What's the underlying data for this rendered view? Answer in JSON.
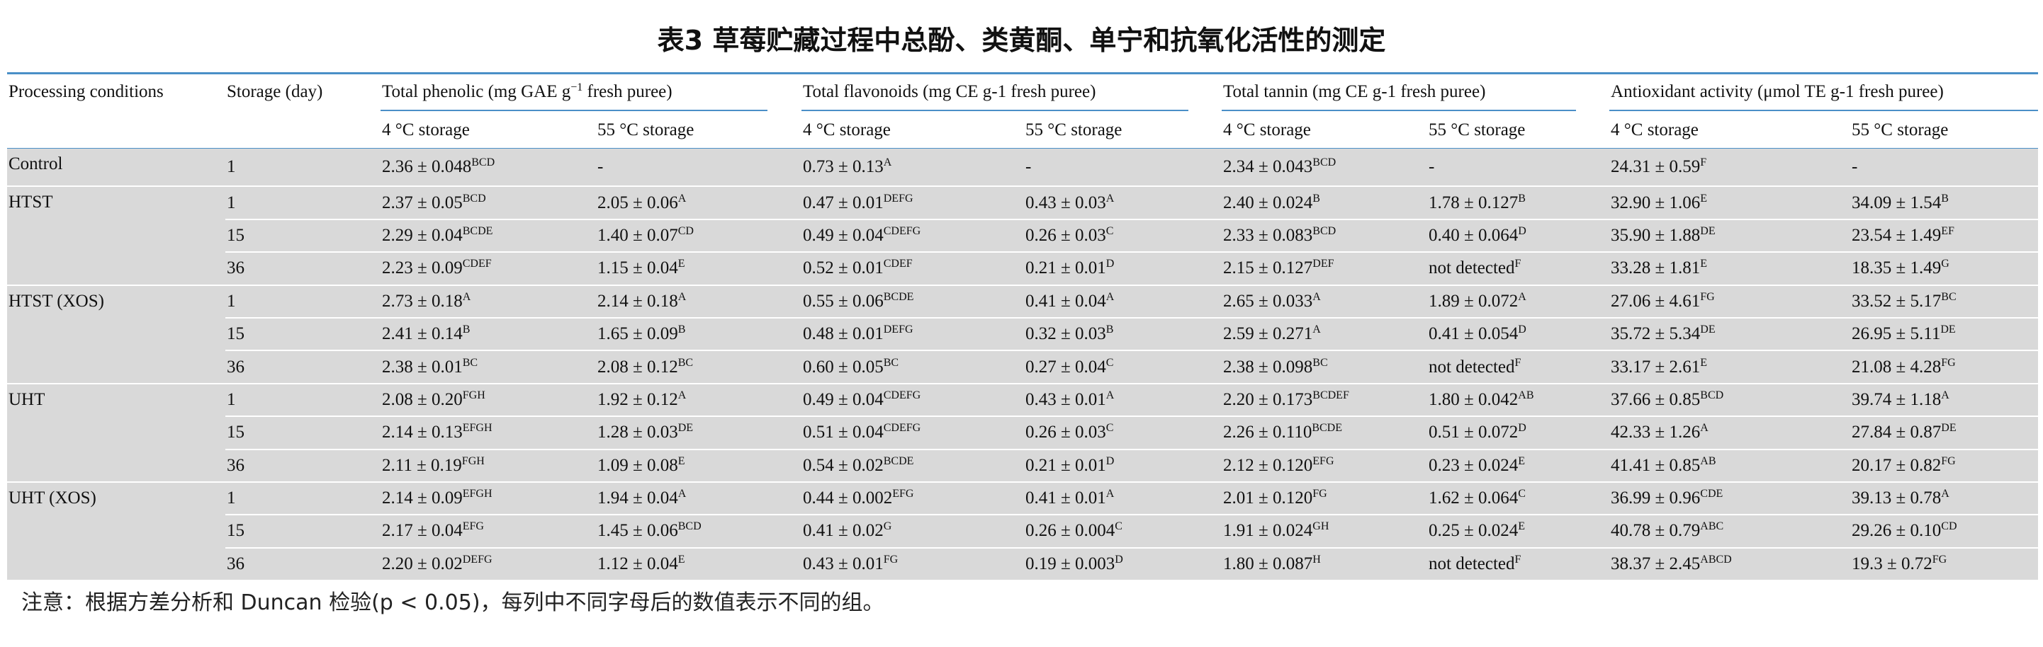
{
  "title": "表3 草莓贮藏过程中总酚、类黄酮、单宁和抗氧化活性的测定",
  "headers": {
    "processing": "Processing conditions",
    "storage": "Storage (day)",
    "phenolic": "Total phenolic (mg GAE g",
    "phenolic_exp": "−1",
    "phenolic_tail": " fresh puree)",
    "flavonoids": "Total flavonoids (mg CE g-1 fresh puree)",
    "tannin": "Total tannin (mg CE g-1 fresh puree)",
    "antioxidant": "Antioxidant activity (μmol TE g-1 fresh puree)",
    "sub4": "4 °C storage",
    "sub55": "55 °C storage"
  },
  "rows": [
    {
      "group": "Control",
      "day": "1",
      "c": [
        [
          "2.36 ± 0.048",
          "BCD"
        ],
        [
          "-",
          ""
        ],
        [
          "0.73 ± 0.13",
          "A"
        ],
        [
          "-",
          ""
        ],
        [
          "2.34 ± 0.043",
          "BCD"
        ],
        [
          "-",
          ""
        ],
        [
          "24.31 ± 0.59",
          "F"
        ],
        [
          "-",
          ""
        ]
      ]
    },
    {
      "group": "HTST",
      "day": "1",
      "c": [
        [
          "2.37 ± 0.05",
          "BCD"
        ],
        [
          "2.05 ± 0.06",
          "A"
        ],
        [
          "0.47 ± 0.01",
          "DEFG"
        ],
        [
          "0.43 ± 0.03",
          "A"
        ],
        [
          "2.40 ± 0.024",
          "B"
        ],
        [
          "1.78 ± 0.127",
          "B"
        ],
        [
          "32.90 ± 1.06",
          "E"
        ],
        [
          "34.09 ± 1.54",
          "B"
        ]
      ]
    },
    {
      "group": "",
      "day": "15",
      "c": [
        [
          "2.29 ± 0.04",
          "BCDE"
        ],
        [
          "1.40 ± 0.07",
          "CD"
        ],
        [
          "0.49 ± 0.04",
          "CDEFG"
        ],
        [
          "0.26 ± 0.03",
          "C"
        ],
        [
          "2.33 ± 0.083",
          "BCD"
        ],
        [
          "0.40 ± 0.064",
          "D"
        ],
        [
          "35.90 ± 1.88",
          "DE"
        ],
        [
          "23.54 ± 1.49",
          "EF"
        ]
      ]
    },
    {
      "group": "",
      "day": "36",
      "c": [
        [
          "2.23 ± 0.09",
          "CDEF"
        ],
        [
          "1.15 ± 0.04",
          "E"
        ],
        [
          "0.52 ± 0.01",
          "CDEF"
        ],
        [
          "0.21 ± 0.01",
          "D"
        ],
        [
          "2.15 ± 0.127",
          "DEF"
        ],
        [
          "not detected",
          "F"
        ],
        [
          "33.28 ± 1.81",
          "E"
        ],
        [
          "18.35 ± 1.49",
          "G"
        ]
      ]
    },
    {
      "group": "HTST (XOS)",
      "day": "1",
      "c": [
        [
          "2.73 ± 0.18",
          "A"
        ],
        [
          "2.14 ± 0.18",
          "A"
        ],
        [
          "0.55 ± 0.06",
          "BCDE"
        ],
        [
          "0.41 ± 0.04",
          "A"
        ],
        [
          "2.65 ± 0.033",
          "A"
        ],
        [
          "1.89 ± 0.072",
          "A"
        ],
        [
          "27.06 ± 4.61",
          "FG"
        ],
        [
          "33.52 ± 5.17",
          "BC"
        ]
      ]
    },
    {
      "group": "",
      "day": "15",
      "c": [
        [
          "2.41 ± 0.14",
          "B"
        ],
        [
          "1.65 ± 0.09",
          "B"
        ],
        [
          "0.48 ± 0.01",
          "DEFG"
        ],
        [
          "0.32 ± 0.03",
          "B"
        ],
        [
          "2.59 ± 0.271",
          "A"
        ],
        [
          "0.41 ± 0.054",
          "D"
        ],
        [
          "35.72 ± 5.34",
          "DE"
        ],
        [
          "26.95 ± 5.11",
          "DE"
        ]
      ]
    },
    {
      "group": "",
      "day": "36",
      "c": [
        [
          "2.38 ± 0.01",
          "BC"
        ],
        [
          "2.08 ± 0.12",
          "BC"
        ],
        [
          "0.60 ± 0.05",
          "BC"
        ],
        [
          "0.27 ± 0.04",
          "C"
        ],
        [
          "2.38 ± 0.098",
          "BC"
        ],
        [
          "not detected",
          "F"
        ],
        [
          "33.17 ± 2.61",
          "E"
        ],
        [
          "21.08 ± 4.28",
          "FG"
        ]
      ]
    },
    {
      "group": "UHT",
      "day": "1",
      "c": [
        [
          "2.08 ± 0.20",
          "FGH"
        ],
        [
          "1.92 ± 0.12",
          "A"
        ],
        [
          "0.49 ± 0.04",
          "CDEFG"
        ],
        [
          "0.43 ± 0.01",
          "A"
        ],
        [
          "2.20 ± 0.173",
          "BCDEF"
        ],
        [
          "1.80 ± 0.042",
          "AB"
        ],
        [
          "37.66 ± 0.85",
          "BCD"
        ],
        [
          "39.74 ± 1.18",
          "A"
        ]
      ]
    },
    {
      "group": "",
      "day": "15",
      "c": [
        [
          "2.14 ± 0.13",
          "EFGH"
        ],
        [
          "1.28 ± 0.03",
          "DE"
        ],
        [
          "0.51 ± 0.04",
          "CDEFG"
        ],
        [
          "0.26 ± 0.03",
          "C"
        ],
        [
          "2.26 ± 0.110",
          "BCDE"
        ],
        [
          "0.51 ± 0.072",
          "D"
        ],
        [
          "42.33 ± 1.26",
          "A"
        ],
        [
          "27.84 ± 0.87",
          "DE"
        ]
      ]
    },
    {
      "group": "",
      "day": "36",
      "c": [
        [
          "2.11 ± 0.19",
          "FGH"
        ],
        [
          "1.09 ± 0.08",
          "E"
        ],
        [
          "0.54 ± 0.02",
          "BCDE"
        ],
        [
          "0.21 ± 0.01",
          "D"
        ],
        [
          "2.12 ± 0.120",
          "EFG"
        ],
        [
          "0.23 ± 0.024",
          "E"
        ],
        [
          "41.41 ± 0.85",
          "AB"
        ],
        [
          "20.17 ± 0.82",
          "FG"
        ]
      ]
    },
    {
      "group": "UHT (XOS)",
      "day": "1",
      "c": [
        [
          "2.14 ± 0.09",
          "EFGH"
        ],
        [
          "1.94 ± 0.04",
          "A"
        ],
        [
          "0.44 ± 0.002",
          "EFG"
        ],
        [
          "0.41 ± 0.01",
          "A"
        ],
        [
          "2.01 ± 0.120",
          "FG"
        ],
        [
          "1.62 ± 0.064",
          "C"
        ],
        [
          "36.99 ± 0.96",
          "CDE"
        ],
        [
          "39.13 ± 0.78",
          "A"
        ]
      ]
    },
    {
      "group": "",
      "day": "15",
      "c": [
        [
          "2.17 ± 0.04",
          "EFG"
        ],
        [
          "1.45 ± 0.06",
          "BCD"
        ],
        [
          "0.41 ± 0.02",
          "G"
        ],
        [
          "0.26 ± 0.004",
          "C"
        ],
        [
          "1.91 ± 0.024",
          "GH"
        ],
        [
          "0.25 ± 0.024",
          "E"
        ],
        [
          "40.78 ± 0.79",
          "ABC"
        ],
        [
          "29.26 ± 0.10",
          "CD"
        ]
      ]
    },
    {
      "group": "",
      "day": "36",
      "c": [
        [
          "2.20 ± 0.02",
          "DEFG"
        ],
        [
          "1.12 ± 0.04",
          "E"
        ],
        [
          "0.43 ± 0.01",
          "FG"
        ],
        [
          "0.19 ± 0.003",
          "D"
        ],
        [
          "1.80 ± 0.087",
          "H"
        ],
        [
          "not detected",
          "F"
        ],
        [
          "38.37 ± 2.45",
          "ABCD"
        ],
        [
          "19.3 ± 0.72",
          "FG"
        ]
      ]
    }
  ],
  "note": "注意：根据方差分析和 Duncan 检验(p < 0.05)，每列中不同字母后的数值表示不同的组。"
}
